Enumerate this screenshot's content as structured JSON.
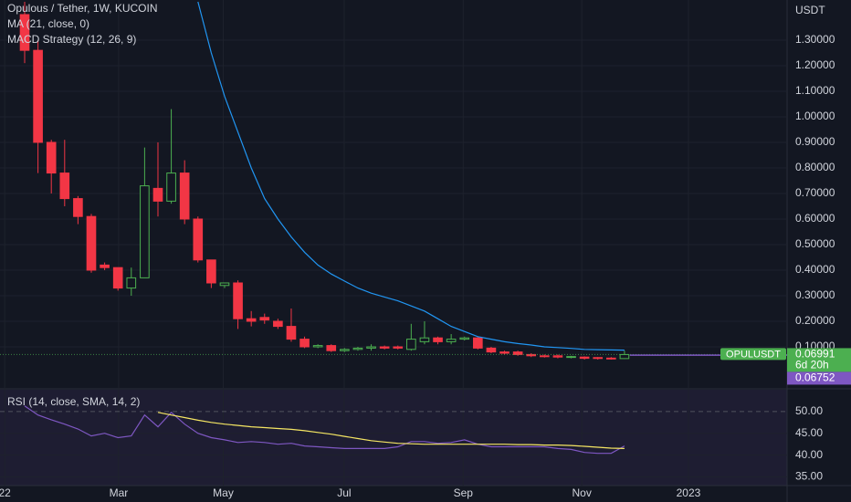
{
  "chart_data": {
    "type": "candlestick",
    "title": "Opulous / Tether, 1W, KUCOIN",
    "axis_unit": "USDT",
    "categories": [
      null,
      null,
      null,
      null,
      null,
      null,
      null,
      null,
      null,
      null,
      null,
      null,
      null,
      null,
      null,
      null,
      null,
      null,
      null,
      null,
      null,
      null,
      null,
      null,
      null,
      null,
      null,
      null,
      null,
      null,
      null,
      null,
      null,
      null,
      null,
      null,
      null,
      null,
      null,
      null,
      null,
      null,
      null,
      null,
      null,
      null
    ],
    "open": [
      1.4,
      1.26,
      0.9,
      0.78,
      0.68,
      0.61,
      0.42,
      0.41,
      0.33,
      0.37,
      0.72,
      0.67,
      0.78,
      0.6,
      0.44,
      0.34,
      0.35,
      0.21,
      0.215,
      0.2,
      0.18,
      0.13,
      0.1,
      0.105,
      0.085,
      0.09,
      0.095,
      0.1,
      0.1,
      0.09,
      0.12,
      0.135,
      0.12,
      0.13,
      0.135,
      0.095,
      0.08,
      0.08,
      0.07,
      0.065,
      0.065,
      0.06,
      0.06,
      0.058,
      0.056,
      0.054
    ],
    "high": [
      1.45,
      1.3,
      0.91,
      0.91,
      0.69,
      0.62,
      0.43,
      0.41,
      0.41,
      0.88,
      0.9,
      1.03,
      0.83,
      0.61,
      0.44,
      0.35,
      0.36,
      0.24,
      0.23,
      0.21,
      0.25,
      0.14,
      0.11,
      0.11,
      0.095,
      0.1,
      0.11,
      0.105,
      0.105,
      0.19,
      0.2,
      0.14,
      0.15,
      0.14,
      0.14,
      0.1,
      0.085,
      0.085,
      0.075,
      0.07,
      0.07,
      0.065,
      0.063,
      0.06,
      0.06,
      0.085
    ],
    "low": [
      1.21,
      0.78,
      0.7,
      0.65,
      0.58,
      0.39,
      0.4,
      0.32,
      0.3,
      0.37,
      0.61,
      0.66,
      0.58,
      0.43,
      0.33,
      0.33,
      0.17,
      0.18,
      0.19,
      0.17,
      0.12,
      0.095,
      0.095,
      0.08,
      0.08,
      0.085,
      0.085,
      0.09,
      0.09,
      0.085,
      0.11,
      0.11,
      0.11,
      0.125,
      0.09,
      0.075,
      0.07,
      0.065,
      0.06,
      0.058,
      0.055,
      0.055,
      0.05,
      0.05,
      0.05,
      0.053
    ],
    "close": [
      1.26,
      0.9,
      0.78,
      0.68,
      0.61,
      0.4,
      0.41,
      0.33,
      0.37,
      0.73,
      0.67,
      0.78,
      0.6,
      0.44,
      0.35,
      0.35,
      0.21,
      0.2,
      0.205,
      0.18,
      0.13,
      0.1,
      0.105,
      0.085,
      0.09,
      0.095,
      0.1,
      0.095,
      0.095,
      0.13,
      0.135,
      0.12,
      0.13,
      0.135,
      0.095,
      0.08,
      0.075,
      0.07,
      0.065,
      0.062,
      0.06,
      0.062,
      0.055,
      0.055,
      0.054,
      0.06991
    ],
    "up_color": "#4caf50",
    "down_color": "#f23645",
    "xlim": [
      -1.85,
      57.2
    ],
    "xticks": [
      {
        "value": -1.5,
        "label": "22"
      },
      {
        "value": 7.05,
        "label": "Mar"
      },
      {
        "value": 14.9,
        "label": "May"
      },
      {
        "value": 23.97,
        "label": "Jul"
      },
      {
        "value": 32.9,
        "label": "Sep"
      },
      {
        "value": 41.8,
        "label": "Nov"
      },
      {
        "value": 49.8,
        "label": "2023"
      }
    ],
    "ylim": [
      -0.0607,
      1.457
    ],
    "yticks": [
      {
        "value": 0.1,
        "label": "0.10000"
      },
      {
        "value": 0.2,
        "label": "0.20000"
      },
      {
        "value": 0.3,
        "label": "0.30000"
      },
      {
        "value": 0.4,
        "label": "0.40000"
      },
      {
        "value": 0.5,
        "label": "0.50000"
      },
      {
        "value": 0.6,
        "label": "0.60000"
      },
      {
        "value": 0.7,
        "label": "0.70000"
      },
      {
        "value": 0.8,
        "label": "0.80000"
      },
      {
        "value": 0.9,
        "label": "0.90000"
      },
      {
        "value": 1.0,
        "label": "1.00000"
      },
      {
        "value": 1.1,
        "label": "1.10000"
      },
      {
        "value": 1.2,
        "label": "1.20000"
      },
      {
        "value": 1.3,
        "label": "1.30000"
      }
    ],
    "grid": true,
    "ma": {
      "name": "MA (21, close, 0)",
      "color": "#2196f3",
      "values": [
        null,
        null,
        null,
        null,
        null,
        null,
        null,
        null,
        null,
        null,
        null,
        null,
        null,
        1.45,
        1.25,
        1.08,
        0.94,
        0.8,
        0.68,
        0.6,
        0.53,
        0.47,
        0.42,
        0.385,
        0.357,
        0.33,
        0.31,
        0.295,
        0.28,
        0.26,
        0.24,
        0.21,
        0.18,
        0.16,
        0.14,
        0.13,
        0.12,
        0.113,
        0.107,
        0.1,
        0.097,
        0.094,
        0.09,
        0.089,
        0.088,
        0.087
      ]
    },
    "strategy": {
      "name": "MACD Strategy (12, 26, 9)",
      "value": 0.06752,
      "color": "#7e57c2"
    },
    "price_tag": {
      "symbol": "OPULUSDT",
      "value": 0.06991,
      "countdown": "6d 20h",
      "color": "#4caf50"
    },
    "rsi": {
      "title": "RSI (14, close, SMA, 14, 2)",
      "ylim": [
        33,
        55
      ],
      "yticks": [
        {
          "value": 35,
          "label": "35.00"
        },
        {
          "value": 40,
          "label": "40.00"
        },
        {
          "value": 45,
          "label": "45.00"
        },
        {
          "value": 50,
          "label": "50.00"
        }
      ],
      "series": [
        {
          "color": "#7e57c2",
          "values": [
            51.3,
            49.2,
            48.1,
            47.1,
            46.0,
            44.4,
            45.0,
            44.0,
            44.4,
            49.2,
            46.5,
            49.8,
            47.1,
            45.0,
            44.0,
            43.5,
            42.9,
            43.1,
            42.9,
            42.5,
            42.7,
            42.1,
            41.9,
            41.7,
            41.5,
            41.5,
            41.5,
            41.5,
            41.9,
            43.1,
            43.1,
            42.7,
            42.9,
            43.5,
            42.5,
            41.9,
            41.9,
            41.9,
            41.9,
            41.9,
            41.5,
            41.3,
            40.6,
            40.4,
            40.4,
            42.1
          ]
        },
        {
          "color": "#f5e663",
          "values": [
            null,
            null,
            null,
            null,
            null,
            null,
            null,
            null,
            null,
            null,
            49.8,
            49.2,
            48.6,
            48.0,
            47.5,
            47.1,
            46.8,
            46.5,
            46.3,
            46.1,
            45.9,
            45.6,
            45.2,
            44.8,
            44.3,
            43.8,
            43.3,
            43.0,
            42.7,
            42.6,
            42.5,
            42.5,
            42.5,
            42.5,
            42.5,
            42.5,
            42.5,
            42.4,
            42.4,
            42.3,
            42.3,
            42.2,
            42.0,
            41.8,
            41.6,
            41.5
          ]
        }
      ]
    }
  }
}
